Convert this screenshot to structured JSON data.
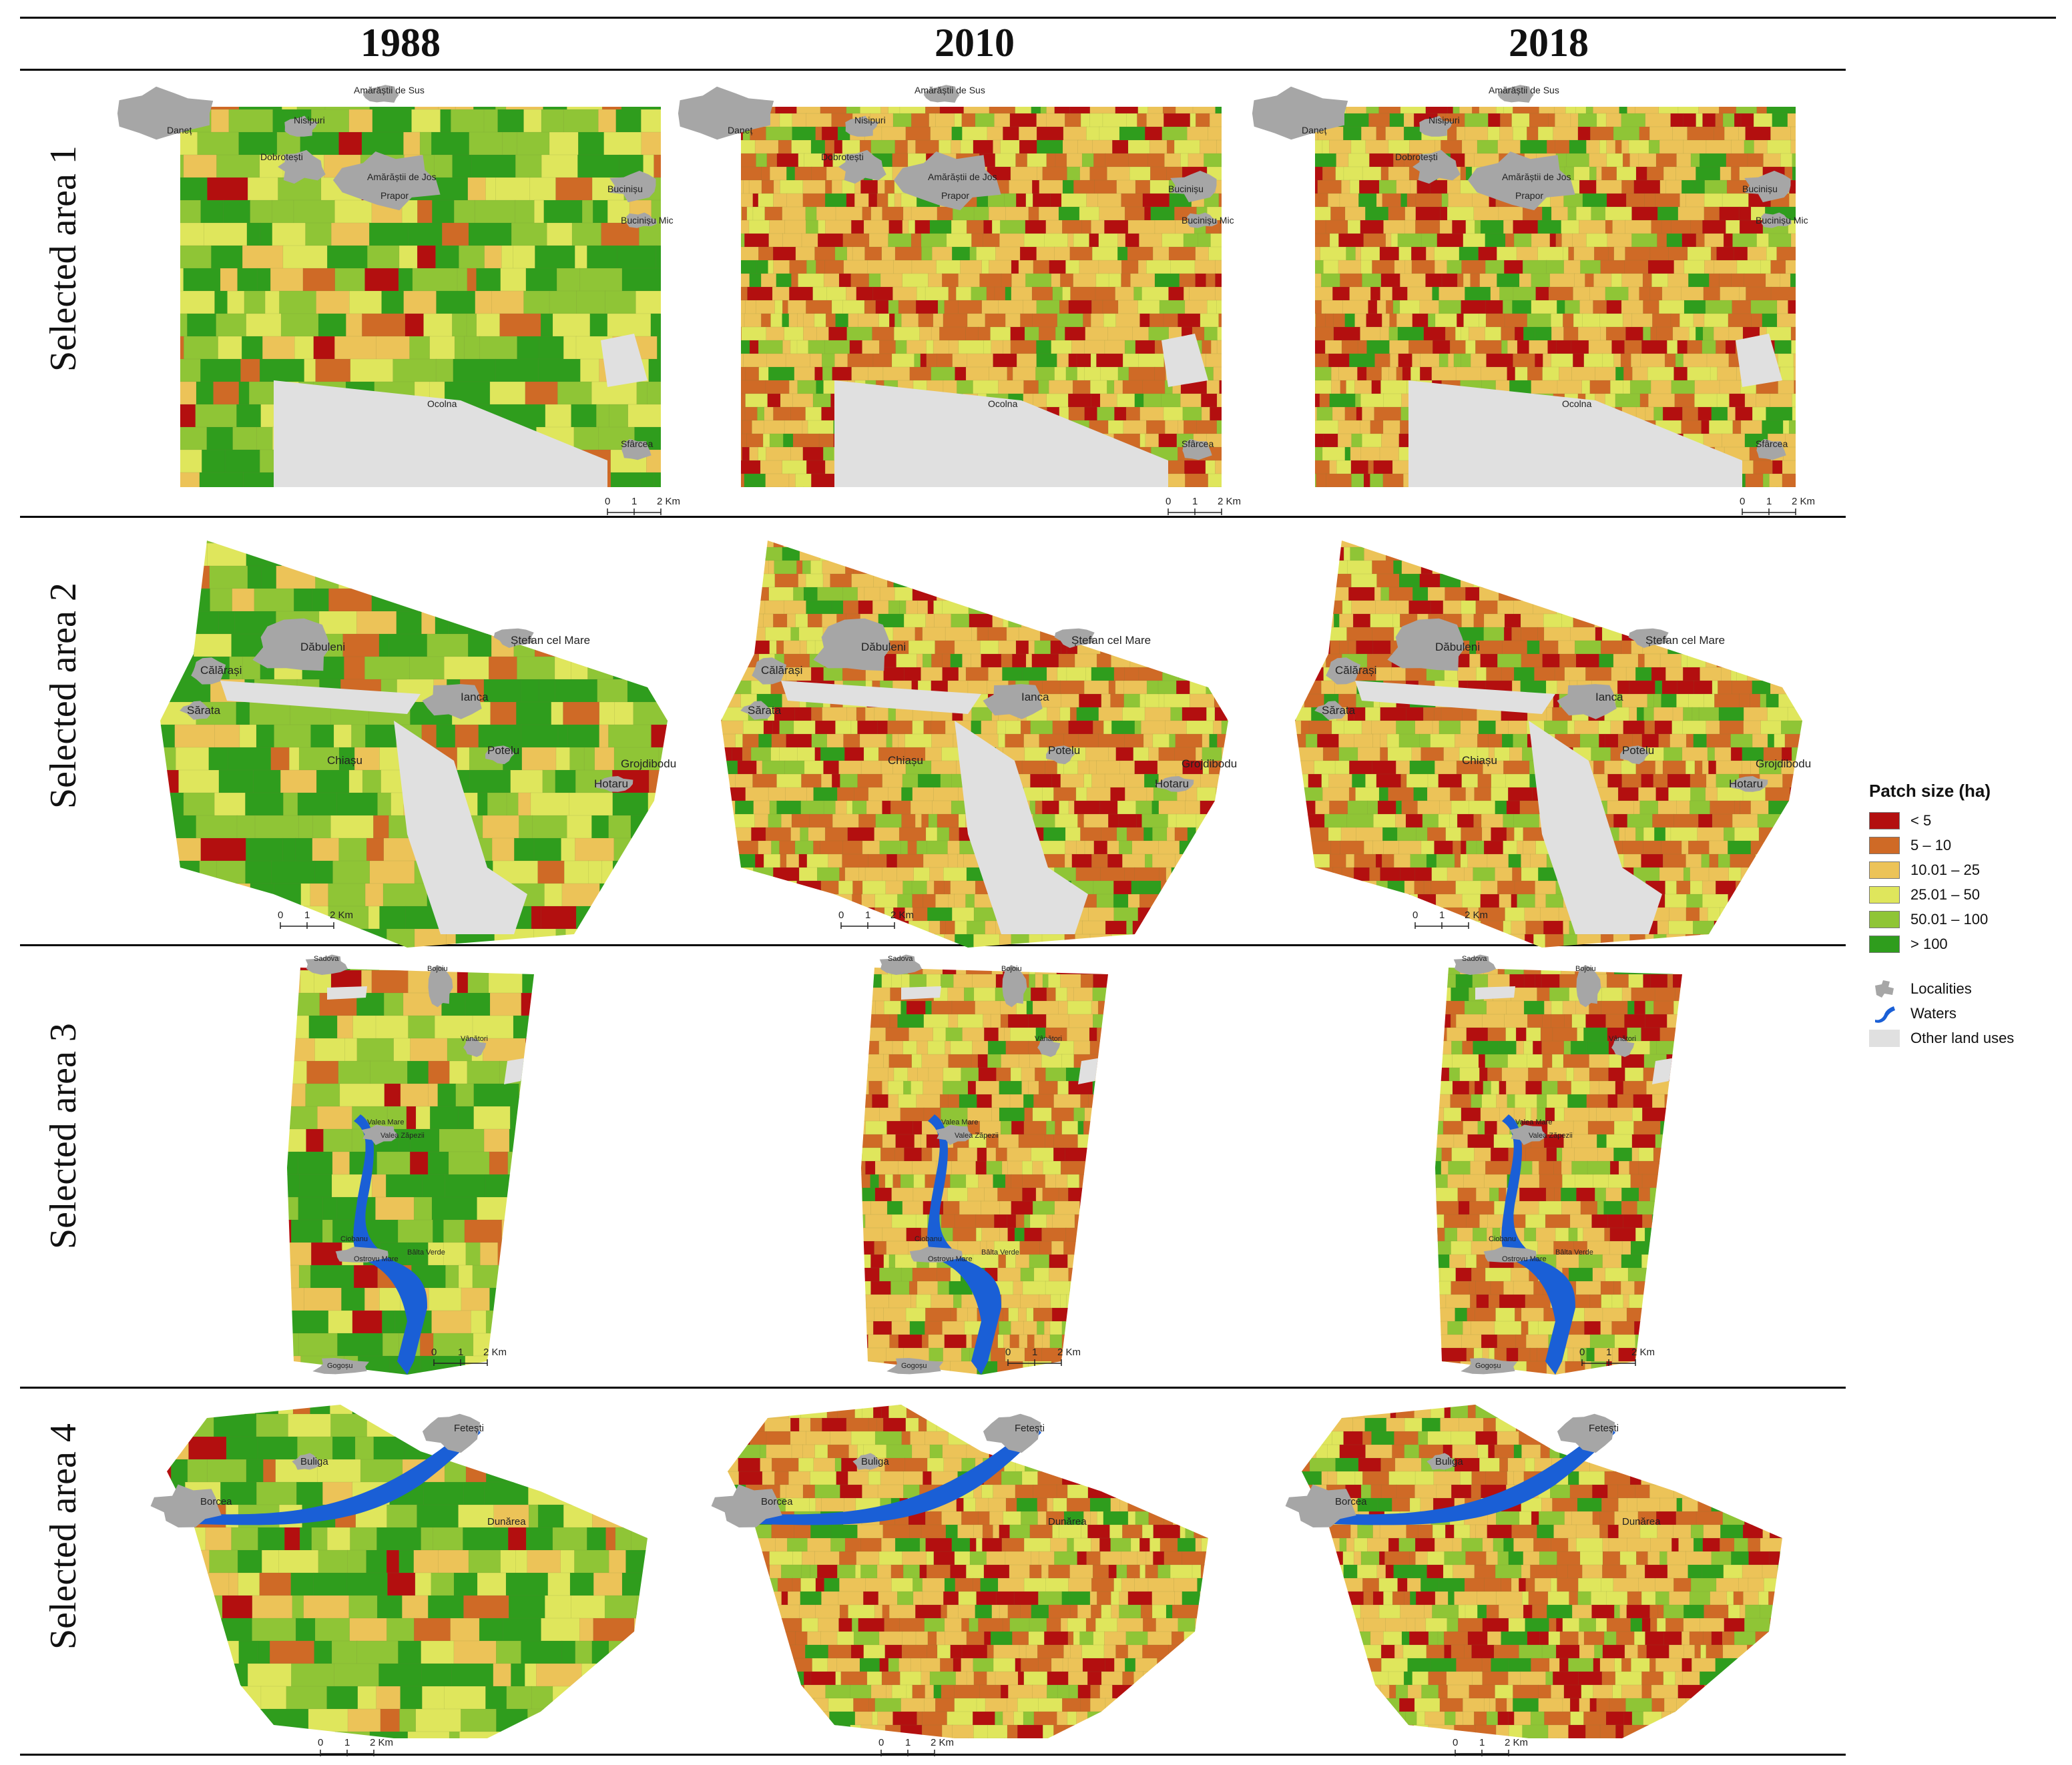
{
  "columns": [
    "1988",
    "2010",
    "2018"
  ],
  "rows": [
    {
      "label": "Selected area 1"
    },
    {
      "label": "Selected area 2"
    },
    {
      "label": "Selected area 3"
    },
    {
      "label": "Selected area 4"
    }
  ],
  "scalebar": {
    "z": "0",
    "one": "1",
    "two": "2 Km"
  },
  "legend": {
    "title": "Patch size (ha)",
    "classes": [
      {
        "label": "< 5",
        "color": "#b30f0f"
      },
      {
        "label": "5 – 10",
        "color": "#cf6a26"
      },
      {
        "label": "10.01 – 25",
        "color": "#ecc358"
      },
      {
        "label": "25.01 – 50",
        "color": "#dfe65c"
      },
      {
        "label": "50.01 – 100",
        "color": "#8fc536"
      },
      {
        "label": "> 100",
        "color": "#2f9d1d"
      }
    ],
    "symbols": [
      {
        "label": "Localities",
        "icon": "locality-icon",
        "color": "#a6a6a6"
      },
      {
        "label": "Waters",
        "icon": "water-icon",
        "color": "#1a5fd6"
      },
      {
        "label": "Other land uses",
        "icon": "other-land-icon",
        "color": "#e0e0e0"
      }
    ]
  },
  "maps": {
    "area1": {
      "localities": [
        "Amărăștii de Sus",
        "Daneț",
        "Nisipuri",
        "Dobrotești",
        "Amărăștii de Jos",
        "Prapor",
        "Bucinișu",
        "Bucinișu Mic",
        "Ocolna",
        "Sfârcea"
      ]
    },
    "area2": {
      "localities": [
        "Ștefan cel Mare",
        "Dăbuleni",
        "Călărași",
        "Sărata",
        "Ianca",
        "Chiașu",
        "Potelu",
        "Hotaru",
        "Grojdibodu"
      ]
    },
    "area3": {
      "localities": [
        "Sadova",
        "Bojoiu",
        "Vânători",
        "Valea Mare",
        "Valea Zăpezii",
        "Ciobanu",
        "Ostrovu Mare",
        "Bâlta Verde",
        "Gogoșu"
      ]
    },
    "area4": {
      "localities": [
        "Fetești",
        "Buliga",
        "Borcea",
        "Dunărea"
      ]
    }
  },
  "variants": [
    {
      "year": "1988",
      "weights": [
        0.03,
        0.06,
        0.12,
        0.2,
        0.27,
        0.32
      ]
    },
    {
      "year": "2010",
      "weights": [
        0.12,
        0.22,
        0.32,
        0.16,
        0.12,
        0.06
      ]
    },
    {
      "year": "2018",
      "weights": [
        0.14,
        0.24,
        0.28,
        0.16,
        0.11,
        0.07
      ]
    }
  ]
}
